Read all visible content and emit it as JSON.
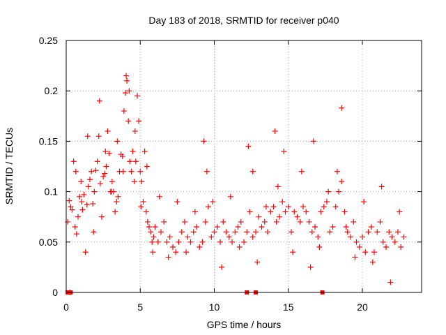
{
  "chart_data": {
    "type": "scatter",
    "title": "Day 183 of 2018, SRMTID for receiver p040",
    "xlabel": "GPS time / hours",
    "ylabel": "SRMTID / TECUs",
    "xlim": [
      0,
      24
    ],
    "ylim": [
      0,
      0.25
    ],
    "xticks": [
      0,
      5,
      10,
      15,
      20
    ],
    "xtick_labels": [
      "0",
      "5",
      "10",
      "15",
      "20"
    ],
    "yticks": [
      0,
      0.05,
      0.1,
      0.15,
      0.2,
      0.25
    ],
    "ytick_labels": [
      "0",
      "0.05",
      "0.1",
      "0.15",
      "0.2",
      "0.25"
    ],
    "grid": true,
    "marker": "+",
    "series": [
      {
        "name": "SRMTID",
        "color": "#ff0000",
        "x": [
          0.1,
          0.2,
          0.3,
          0.4,
          0.5,
          0.6,
          0.7,
          0.8,
          0.9,
          1.0,
          1.1,
          1.2,
          1.3,
          1.4,
          1.5,
          1.6,
          1.7,
          1.8,
          1.9,
          2.0,
          2.1,
          2.2,
          2.3,
          2.4,
          2.5,
          2.6,
          2.7,
          2.8,
          2.9,
          3.0,
          3.1,
          3.2,
          3.3,
          3.4,
          3.5,
          3.6,
          3.7,
          3.8,
          3.9,
          4.0,
          4.1,
          4.2,
          4.3,
          4.4,
          4.5,
          4.6,
          4.7,
          4.8,
          4.9,
          5.0,
          5.1,
          5.2,
          5.3,
          5.4,
          5.5,
          5.6,
          5.7,
          5.8,
          5.9,
          6.0,
          6.2,
          6.4,
          6.6,
          6.8,
          7.0,
          7.2,
          7.4,
          7.6,
          7.8,
          8.0,
          8.2,
          8.4,
          8.6,
          8.8,
          9.0,
          9.2,
          9.4,
          9.6,
          9.8,
          10.0,
          10.2,
          10.4,
          10.6,
          10.8,
          11.0,
          11.2,
          11.4,
          11.6,
          11.8,
          12.0,
          12.2,
          12.4,
          12.6,
          12.8,
          13.0,
          13.2,
          13.4,
          13.6,
          13.8,
          14.0,
          14.2,
          14.4,
          14.6,
          14.8,
          15.0,
          15.2,
          15.4,
          15.6,
          15.8,
          16.0,
          16.2,
          16.4,
          16.6,
          16.8,
          17.0,
          17.2,
          17.4,
          17.6,
          17.8,
          18.0,
          18.2,
          18.4,
          18.6,
          18.8,
          19.0,
          19.2,
          19.4,
          19.6,
          19.8,
          20.0,
          20.2,
          20.4,
          20.6,
          20.8,
          21.0,
          21.2,
          21.4,
          21.6,
          21.8,
          22.0,
          22.2,
          22.4,
          22.6,
          22.8,
          0.25,
          0.65,
          1.05,
          1.45,
          1.85,
          2.25,
          2.65,
          3.05,
          3.45,
          3.85,
          4.05,
          4.25,
          4.65,
          5.05,
          5.45,
          5.85,
          6.3,
          6.9,
          7.5,
          8.1,
          8.7,
          9.3,
          9.5,
          9.9,
          10.5,
          11.1,
          11.7,
          12.3,
          12.6,
          12.9,
          13.5,
          14.1,
          14.3,
          14.7,
          15.3,
          15.9,
          16.5,
          16.7,
          17.1,
          17.7,
          18.3,
          18.6,
          18.9,
          19.5,
          20.1,
          20.7,
          21.3,
          21.9,
          22.5
        ],
        "y": [
          0.07,
          0.091,
          0.085,
          0.082,
          0.13,
          0.065,
          0.058,
          0.075,
          0.095,
          0.11,
          0.082,
          0.097,
          0.04,
          0.087,
          0.105,
          0.112,
          0.12,
          0.088,
          0.1,
          0.121,
          0.13,
          0.155,
          0.108,
          0.075,
          0.115,
          0.118,
          0.125,
          0.16,
          0.138,
          0.1,
          0.11,
          0.1,
          0.08,
          0.09,
          0.095,
          0.12,
          0.137,
          0.135,
          0.18,
          0.198,
          0.21,
          0.17,
          0.13,
          0.12,
          0.14,
          0.11,
          0.13,
          0.195,
          0.17,
          0.12,
          0.11,
          0.09,
          0.14,
          0.08,
          0.07,
          0.065,
          0.06,
          0.05,
          0.055,
          0.065,
          0.05,
          0.06,
          0.07,
          0.05,
          0.055,
          0.045,
          0.04,
          0.05,
          0.06,
          0.07,
          0.055,
          0.05,
          0.06,
          0.065,
          0.045,
          0.05,
          0.07,
          0.085,
          0.055,
          0.06,
          0.065,
          0.05,
          0.07,
          0.06,
          0.055,
          0.05,
          0.06,
          0.065,
          0.07,
          0.05,
          0.06,
          0.08,
          0.055,
          0.06,
          0.075,
          0.065,
          0.07,
          0.06,
          0.08,
          0.085,
          0.07,
          0.075,
          0.09,
          0.08,
          0.085,
          0.06,
          0.08,
          0.075,
          0.07,
          0.085,
          0.08,
          0.07,
          0.06,
          0.065,
          0.055,
          0.08,
          0.085,
          0.09,
          0.06,
          0.065,
          0.085,
          0.1,
          0.11,
          0.08,
          0.06,
          0.055,
          0.07,
          0.05,
          0.045,
          0.055,
          0.04,
          0.06,
          0.065,
          0.04,
          0.06,
          0.07,
          0.05,
          0.045,
          0.06,
          0.055,
          0.05,
          0.06,
          0.045,
          0.055,
          0.0,
          0.12,
          0.09,
          0.155,
          0.06,
          0.19,
          0.14,
          0.1,
          0.15,
          0.12,
          0.215,
          0.2,
          0.16,
          0.085,
          0.125,
          0.04,
          0.095,
          0.035,
          0.09,
          0.04,
          0.08,
          0.15,
          0.12,
          0.09,
          0.025,
          0.095,
          0.045,
          0.145,
          0.12,
          0.03,
          0.085,
          0.16,
          0.105,
          0.14,
          0.04,
          0.12,
          0.025,
          0.15,
          0.045,
          0.1,
          0.12,
          0.183,
          0.065,
          0.035,
          0.09,
          0.03,
          0.105,
          0.01,
          0.08
        ]
      }
    ],
    "zero_markers_x": [
      0.1,
      0.3,
      12.2,
      12.8,
      17.3
    ]
  }
}
